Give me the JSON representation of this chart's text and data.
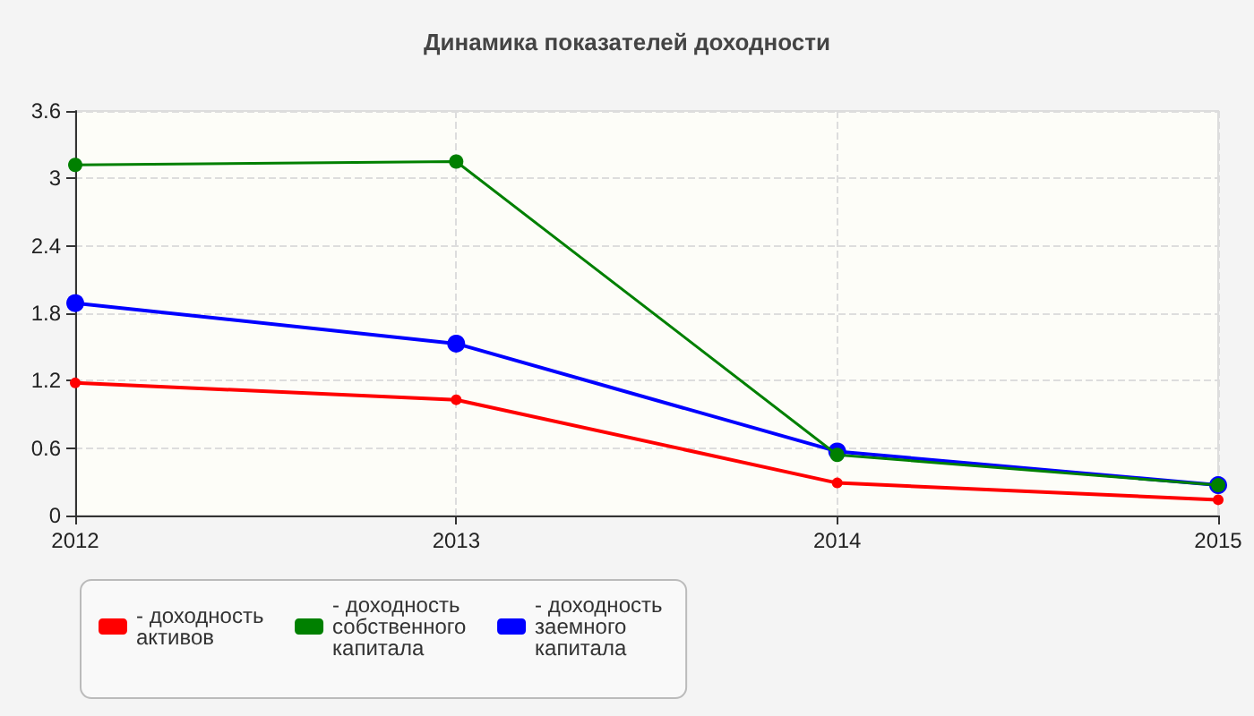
{
  "chart_data": {
    "type": "line",
    "title": "Динамика показателей доходности",
    "categories": [
      "2012",
      "2013",
      "2014",
      "2015"
    ],
    "series": [
      {
        "name": "- доходность активов",
        "color": "#ff0000",
        "values": [
          1.18,
          1.03,
          0.29,
          0.14
        ]
      },
      {
        "name": "- доходность собственного капитала",
        "color": "#008000",
        "values": [
          3.12,
          3.15,
          0.54,
          0.27
        ]
      },
      {
        "name": "- доходность заемного капитала",
        "color": "#0000ff",
        "values": [
          1.89,
          1.53,
          0.57,
          0.27
        ]
      }
    ],
    "ylim": [
      0,
      3.6
    ],
    "yticks": [
      0,
      0.6,
      1.2,
      1.8,
      2.4,
      3,
      3.6
    ],
    "grid": true,
    "legend": "bottom",
    "marker": "circle",
    "line_style": "solid"
  }
}
